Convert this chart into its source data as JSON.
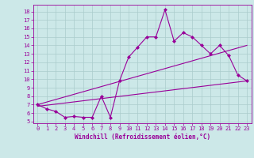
{
  "title": "",
  "xlabel": "Windchill (Refroidissement éolien,°C)",
  "bg_color": "#cce8e8",
  "grid_color": "#aacccc",
  "line_color": "#990099",
  "spine_color": "#660066",
  "xlim": [
    -0.5,
    23.5
  ],
  "ylim": [
    4.8,
    18.8
  ],
  "yticks": [
    5,
    6,
    7,
    8,
    9,
    10,
    11,
    12,
    13,
    14,
    15,
    16,
    17,
    18
  ],
  "xticks": [
    0,
    1,
    2,
    3,
    4,
    5,
    6,
    7,
    8,
    9,
    10,
    11,
    12,
    13,
    14,
    15,
    16,
    17,
    18,
    19,
    20,
    21,
    22,
    23
  ],
  "main_line_x": [
    0,
    1,
    2,
    3,
    4,
    5,
    6,
    7,
    8,
    9,
    10,
    11,
    12,
    13,
    14,
    15,
    16,
    17,
    18,
    19,
    20,
    21,
    22,
    23
  ],
  "main_line_y": [
    7.0,
    6.5,
    6.2,
    5.5,
    5.6,
    5.5,
    5.5,
    8.0,
    5.5,
    9.8,
    12.6,
    13.8,
    15.0,
    15.0,
    18.2,
    14.5,
    15.5,
    15.0,
    14.0,
    13.0,
    14.0,
    12.8,
    10.5,
    9.8
  ],
  "trend1_x": [
    0,
    23
  ],
  "trend1_y": [
    7.0,
    14.0
  ],
  "trend2_x": [
    0,
    23
  ],
  "trend2_y": [
    6.8,
    9.8
  ],
  "marker": "D",
  "markersize": 2,
  "linewidth": 0.8,
  "tick_fontsize": 5,
  "xlabel_fontsize": 5.5
}
